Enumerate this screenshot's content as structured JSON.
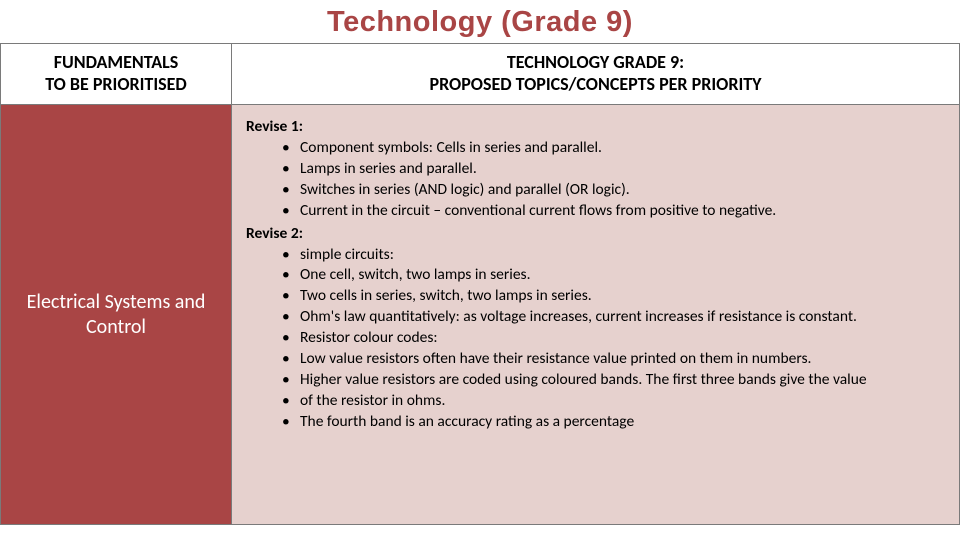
{
  "title": "Technology (Grade 9)",
  "header": {
    "left_line1": "FUNDAMENTALS",
    "left_line2": "TO BE PRIORITISED",
    "right_line1": "TECHNOLOGY GRADE 9:",
    "right_line2": "PROPOSED TOPICS/CONCEPTS PER PRIORITY"
  },
  "content": {
    "fundamental": "Electrical Systems and Control",
    "revise1_label": "Revise 1:",
    "revise1_items": [
      "Component symbols: Cells in series and parallel.",
      "Lamps in series and parallel.",
      "Switches in series (AND logic) and parallel (OR logic).",
      "Current in the circuit – conventional current flows from positive to negative."
    ],
    "revise2_label": "Revise 2:",
    "revise2_items": [
      "simple circuits:",
      "One cell, switch, two lamps in series.",
      "Two cells in series, switch, two lamps in series.",
      "Ohm's law quantitatively: as voltage increases, current increases if resistance is constant.",
      "Resistor colour codes:",
      "Low value resistors often have their resistance value printed on them in numbers.",
      "Higher value resistors are coded using coloured bands. The first three bands give the value",
      "of the resistor in ohms.",
      "The fourth band is an accuracy rating as a percentage"
    ]
  },
  "colors": {
    "accent": "#a94545",
    "cell_bg": "#e6d1ce",
    "border": "#7a7a7a"
  }
}
